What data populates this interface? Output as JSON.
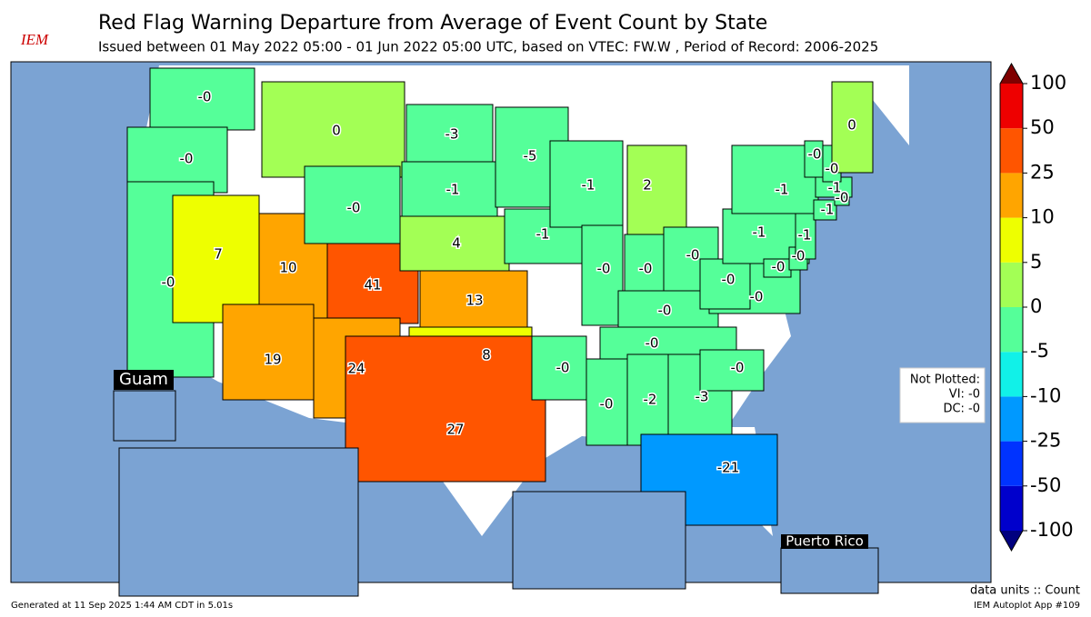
{
  "header": {
    "logo": "IEM",
    "title": "Red Flag Warning Departure from Average of Event Count by State",
    "subtitle": "Issued between 01 May 2022 05:00 - 01 Jun 2022 05:00 UTC, based on VTEC: FW.W  , Period of Record: 2006-2025"
  },
  "states": [
    {
      "value": -0.3,
      "label": "-0"
    },
    {
      "value": -0.3,
      "label": "-0"
    },
    {
      "value": -0.3,
      "label": "-0"
    },
    {
      "value": 7,
      "label": "7"
    },
    {
      "value": 10,
      "label": "10"
    },
    {
      "value": 19,
      "label": "19"
    },
    {
      "value": 0.3,
      "label": "0"
    },
    {
      "value": -0.3,
      "label": "-0"
    },
    {
      "value": 41,
      "label": "41"
    },
    {
      "value": 24,
      "label": "24"
    },
    {
      "value": -3,
      "label": "-3"
    },
    {
      "value": -1,
      "label": "-1"
    },
    {
      "value": 4,
      "label": "4"
    },
    {
      "value": 13,
      "label": "13"
    },
    {
      "value": 8,
      "label": "8"
    },
    {
      "value": 27,
      "label": "27"
    },
    {
      "value": -5,
      "label": "-5"
    },
    {
      "value": -1,
      "label": "-1"
    },
    {
      "value": -0.3,
      "label": "-0"
    },
    {
      "value": -1,
      "label": "-1"
    },
    {
      "value": -0.3,
      "label": "-0"
    },
    {
      "value": 2,
      "label": "2"
    },
    {
      "value": -0.3,
      "label": "-0"
    },
    {
      "value": -0.3,
      "label": "-0"
    },
    {
      "value": -0.3,
      "label": "-0"
    },
    {
      "value": -0.3,
      "label": "-0"
    },
    {
      "value": -0.3,
      "label": "-0"
    },
    {
      "value": -2,
      "label": "-2"
    },
    {
      "value": -3,
      "label": "-3"
    },
    {
      "value": -21,
      "label": "-21"
    },
    {
      "value": -0.3,
      "label": "-0"
    },
    {
      "value": -0.3,
      "label": "-0"
    },
    {
      "value": -0.3,
      "label": "-0"
    },
    {
      "value": -1,
      "label": "-1"
    },
    {
      "value": -1,
      "label": "-1"
    },
    {
      "value": -0.3,
      "label": "-0"
    },
    {
      "value": -0.3,
      "label": "-0"
    },
    {
      "value": -1,
      "label": "-1"
    },
    {
      "value": -1,
      "label": "-1"
    },
    {
      "value": -0.3,
      "label": "-0"
    },
    {
      "value": -1,
      "label": "-1"
    },
    {
      "value": -0.3,
      "label": "-0"
    },
    {
      "value": -0.3,
      "label": "-0"
    },
    {
      "value": 0.3,
      "label": "0"
    },
    {
      "value": 0.3,
      "label": "0"
    },
    {
      "value": -0.3,
      "label": "-0"
    },
    {
      "value": -0.3,
      "label": "-0"
    },
    {
      "value": -0.3,
      "label": "-0"
    }
  ],
  "insets": {
    "guam": "Guam",
    "puerto_rico": "Puerto Rico"
  },
  "not_plotted": {
    "title": "Not Plotted:",
    "items": [
      "VI: -0",
      "DC: -0"
    ]
  },
  "colorbar": {
    "ticks": [
      -100,
      -50,
      -25,
      -10,
      -5,
      0,
      5,
      10,
      25,
      50,
      100
    ],
    "colors": [
      "#0000cc",
      "#0033ff",
      "#0099ff",
      "#11f1e8",
      "#55ff99",
      "#a3ff55",
      "#eeff00",
      "#ffa500",
      "#ff5500",
      "#ee0000"
    ],
    "under": "#00007f",
    "over": "#7f0000"
  },
  "footer": {
    "units": "data units :: Count",
    "app": "IEM Autoplot App #109",
    "generated": "Generated at 11 Sep 2025 1:44 AM CDT in 5.01s"
  }
}
